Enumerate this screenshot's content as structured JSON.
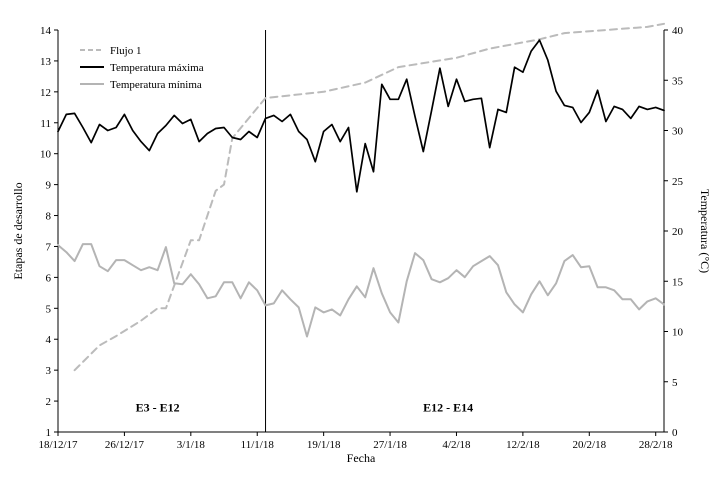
{
  "chart_data": {
    "type": "line",
    "xlabel": "Fecha",
    "ylabel_left": "Etapas de desarrollo",
    "ylabel_right": "Temperatura (°C)",
    "ylim_left": [
      1,
      14
    ],
    "ylim_right": [
      0,
      40
    ],
    "yticks_left": [
      "1",
      "2",
      "3",
      "4",
      "5",
      "6",
      "7",
      "8",
      "9",
      "10",
      "11",
      "12",
      "13",
      "14"
    ],
    "yticks_right": [
      "0",
      "5",
      "10",
      "15",
      "20",
      "25",
      "30",
      "35",
      "40"
    ],
    "xlim": [
      "2017-12-18",
      "2018-03-01"
    ],
    "xticks": [
      {
        "date": "2017-12-18",
        "label": "18/12/17"
      },
      {
        "date": "2017-12-26",
        "label": "26/12/17"
      },
      {
        "date": "2018-01-03",
        "label": "3/1/18"
      },
      {
        "date": "2018-01-11",
        "label": "11/1/18"
      },
      {
        "date": "2018-01-19",
        "label": "19/1/18"
      },
      {
        "date": "2018-01-27",
        "label": "27/1/18"
      },
      {
        "date": "2018-02-04",
        "label": "4/2/18"
      },
      {
        "date": "2018-02-12",
        "label": "12/2/18"
      },
      {
        "date": "2018-02-20",
        "label": "20/2/18"
      },
      {
        "date": "2018-02-28",
        "label": "28/2/18"
      }
    ],
    "grid": false,
    "legend": "top-left",
    "divider_date": "2018-01-12",
    "phases": [
      {
        "label": "E3 - E12",
        "date": "2017-12-30",
        "y": 1.8
      },
      {
        "label": "E12 - E14",
        "date": "2018-02-03",
        "y": 1.8
      }
    ],
    "series": [
      {
        "name": "Flujo 1",
        "axis": "left",
        "color": "#bbbbbb",
        "dash": "7,5",
        "x": [
          "2017-12-20",
          "2017-12-23",
          "2017-12-25",
          "2017-12-28",
          "2017-12-30",
          "2017-12-31",
          "2018-01-03",
          "2018-01-04",
          "2018-01-06",
          "2018-01-07",
          "2018-01-08",
          "2018-01-12",
          "2018-01-19",
          "2018-01-24",
          "2018-01-28",
          "2018-02-04",
          "2018-02-08",
          "2018-02-14",
          "2018-02-17",
          "2018-02-22",
          "2018-02-27",
          "2018-03-01"
        ],
        "values": [
          3.0,
          3.8,
          4.1,
          4.6,
          5.0,
          5.0,
          7.2,
          7.2,
          8.8,
          9.0,
          10.5,
          11.8,
          12.0,
          12.3,
          12.8,
          13.1,
          13.4,
          13.7,
          13.9,
          14.0,
          14.1,
          14.2
        ]
      },
      {
        "name": "Temperatura máxima",
        "axis": "right",
        "color": "#000000",
        "dash": "",
        "x": [
          "2017-12-18",
          "2017-12-19",
          "2017-12-20",
          "2017-12-21",
          "2017-12-22",
          "2017-12-23",
          "2017-12-24",
          "2017-12-25",
          "2017-12-26",
          "2017-12-27",
          "2017-12-28",
          "2017-12-29",
          "2017-12-30",
          "2017-12-31",
          "2018-01-01",
          "2018-01-02",
          "2018-01-03",
          "2018-01-04",
          "2018-01-05",
          "2018-01-06",
          "2018-01-07",
          "2018-01-08",
          "2018-01-09",
          "2018-01-10",
          "2018-01-11",
          "2018-01-12",
          "2018-01-13",
          "2018-01-14",
          "2018-01-15",
          "2018-01-16",
          "2018-01-17",
          "2018-01-18",
          "2018-01-19",
          "2018-01-20",
          "2018-01-21",
          "2018-01-22",
          "2018-01-23",
          "2018-01-24",
          "2018-01-25",
          "2018-01-26",
          "2018-01-27",
          "2018-01-28",
          "2018-01-29",
          "2018-01-30",
          "2018-01-31",
          "2018-02-01",
          "2018-02-02",
          "2018-02-03",
          "2018-02-04",
          "2018-02-05",
          "2018-02-06",
          "2018-02-07",
          "2018-02-08",
          "2018-02-09",
          "2018-02-10",
          "2018-02-11",
          "2018-02-12",
          "2018-02-13",
          "2018-02-14",
          "2018-02-15",
          "2018-02-16",
          "2018-02-17",
          "2018-02-18",
          "2018-02-19",
          "2018-02-20",
          "2018-02-21",
          "2018-02-22",
          "2018-02-23",
          "2018-02-24",
          "2018-02-25",
          "2018-02-26",
          "2018-02-27",
          "2018-02-28",
          "2018-03-01"
        ],
        "values": [
          29.9,
          31.6,
          31.7,
          30.3,
          28.8,
          30.6,
          30.0,
          30.3,
          31.6,
          30.0,
          28.9,
          28.0,
          29.7,
          30.5,
          31.5,
          30.7,
          31.1,
          28.9,
          29.7,
          30.2,
          30.3,
          29.3,
          29.1,
          29.9,
          29.3,
          31.2,
          31.5,
          30.9,
          31.6,
          29.9,
          29.1,
          26.9,
          29.9,
          30.6,
          28.9,
          30.3,
          23.9,
          28.7,
          25.9,
          34.6,
          33.1,
          33.1,
          35.1,
          31.4,
          27.9,
          32.0,
          36.2,
          32.4,
          35.1,
          32.9,
          33.1,
          33.2,
          28.3,
          32.1,
          31.8,
          36.3,
          35.8,
          37.9,
          39.0,
          37.0,
          33.9,
          32.5,
          32.3,
          30.8,
          31.8,
          34.0,
          30.9,
          32.4,
          32.1,
          31.2,
          32.4,
          32.1,
          32.3,
          32.0
        ]
      },
      {
        "name": "Temperatura mínima",
        "axis": "right",
        "color": "#b4b4b4",
        "dash": "",
        "x": [
          "2017-12-18",
          "2017-12-19",
          "2017-12-20",
          "2017-12-21",
          "2017-12-22",
          "2017-12-23",
          "2017-12-24",
          "2017-12-25",
          "2017-12-26",
          "2017-12-27",
          "2017-12-28",
          "2017-12-29",
          "2017-12-30",
          "2017-12-31",
          "2018-01-01",
          "2018-01-02",
          "2018-01-03",
          "2018-01-04",
          "2018-01-05",
          "2018-01-06",
          "2018-01-07",
          "2018-01-08",
          "2018-01-09",
          "2018-01-10",
          "2018-01-11",
          "2018-01-12",
          "2018-01-13",
          "2018-01-14",
          "2018-01-15",
          "2018-01-16",
          "2018-01-17",
          "2018-01-18",
          "2018-01-19",
          "2018-01-20",
          "2018-01-21",
          "2018-01-22",
          "2018-01-23",
          "2018-01-24",
          "2018-01-25",
          "2018-01-26",
          "2018-01-27",
          "2018-01-28",
          "2018-01-29",
          "2018-01-30",
          "2018-01-31",
          "2018-02-01",
          "2018-02-02",
          "2018-02-03",
          "2018-02-04",
          "2018-02-05",
          "2018-02-06",
          "2018-02-07",
          "2018-02-08",
          "2018-02-09",
          "2018-02-10",
          "2018-02-11",
          "2018-02-12",
          "2018-02-13",
          "2018-02-14",
          "2018-02-15",
          "2018-02-16",
          "2018-02-17",
          "2018-02-18",
          "2018-02-19",
          "2018-02-20",
          "2018-02-21",
          "2018-02-22",
          "2018-02-23",
          "2018-02-24",
          "2018-02-25",
          "2018-02-26",
          "2018-02-27",
          "2018-02-28",
          "2018-03-01"
        ],
        "values": [
          18.6,
          17.9,
          17.0,
          18.7,
          18.7,
          16.5,
          16.0,
          17.1,
          17.1,
          16.6,
          16.1,
          16.4,
          16.1,
          18.4,
          14.8,
          14.7,
          15.7,
          14.7,
          13.3,
          13.5,
          14.9,
          14.9,
          13.3,
          14.9,
          14.1,
          12.6,
          12.8,
          14.1,
          13.2,
          12.4,
          9.5,
          12.4,
          11.9,
          12.2,
          11.6,
          13.2,
          14.5,
          13.4,
          16.3,
          13.8,
          11.9,
          10.9,
          15.0,
          17.8,
          17.1,
          15.2,
          14.9,
          15.3,
          16.1,
          15.4,
          16.5,
          17.0,
          17.5,
          16.6,
          13.9,
          12.7,
          11.9,
          13.7,
          15.0,
          13.6,
          14.8,
          17.0,
          17.6,
          16.4,
          16.5,
          14.4,
          14.4,
          14.1,
          13.2,
          13.2,
          12.2,
          13.0,
          13.3,
          12.7
        ]
      }
    ]
  }
}
